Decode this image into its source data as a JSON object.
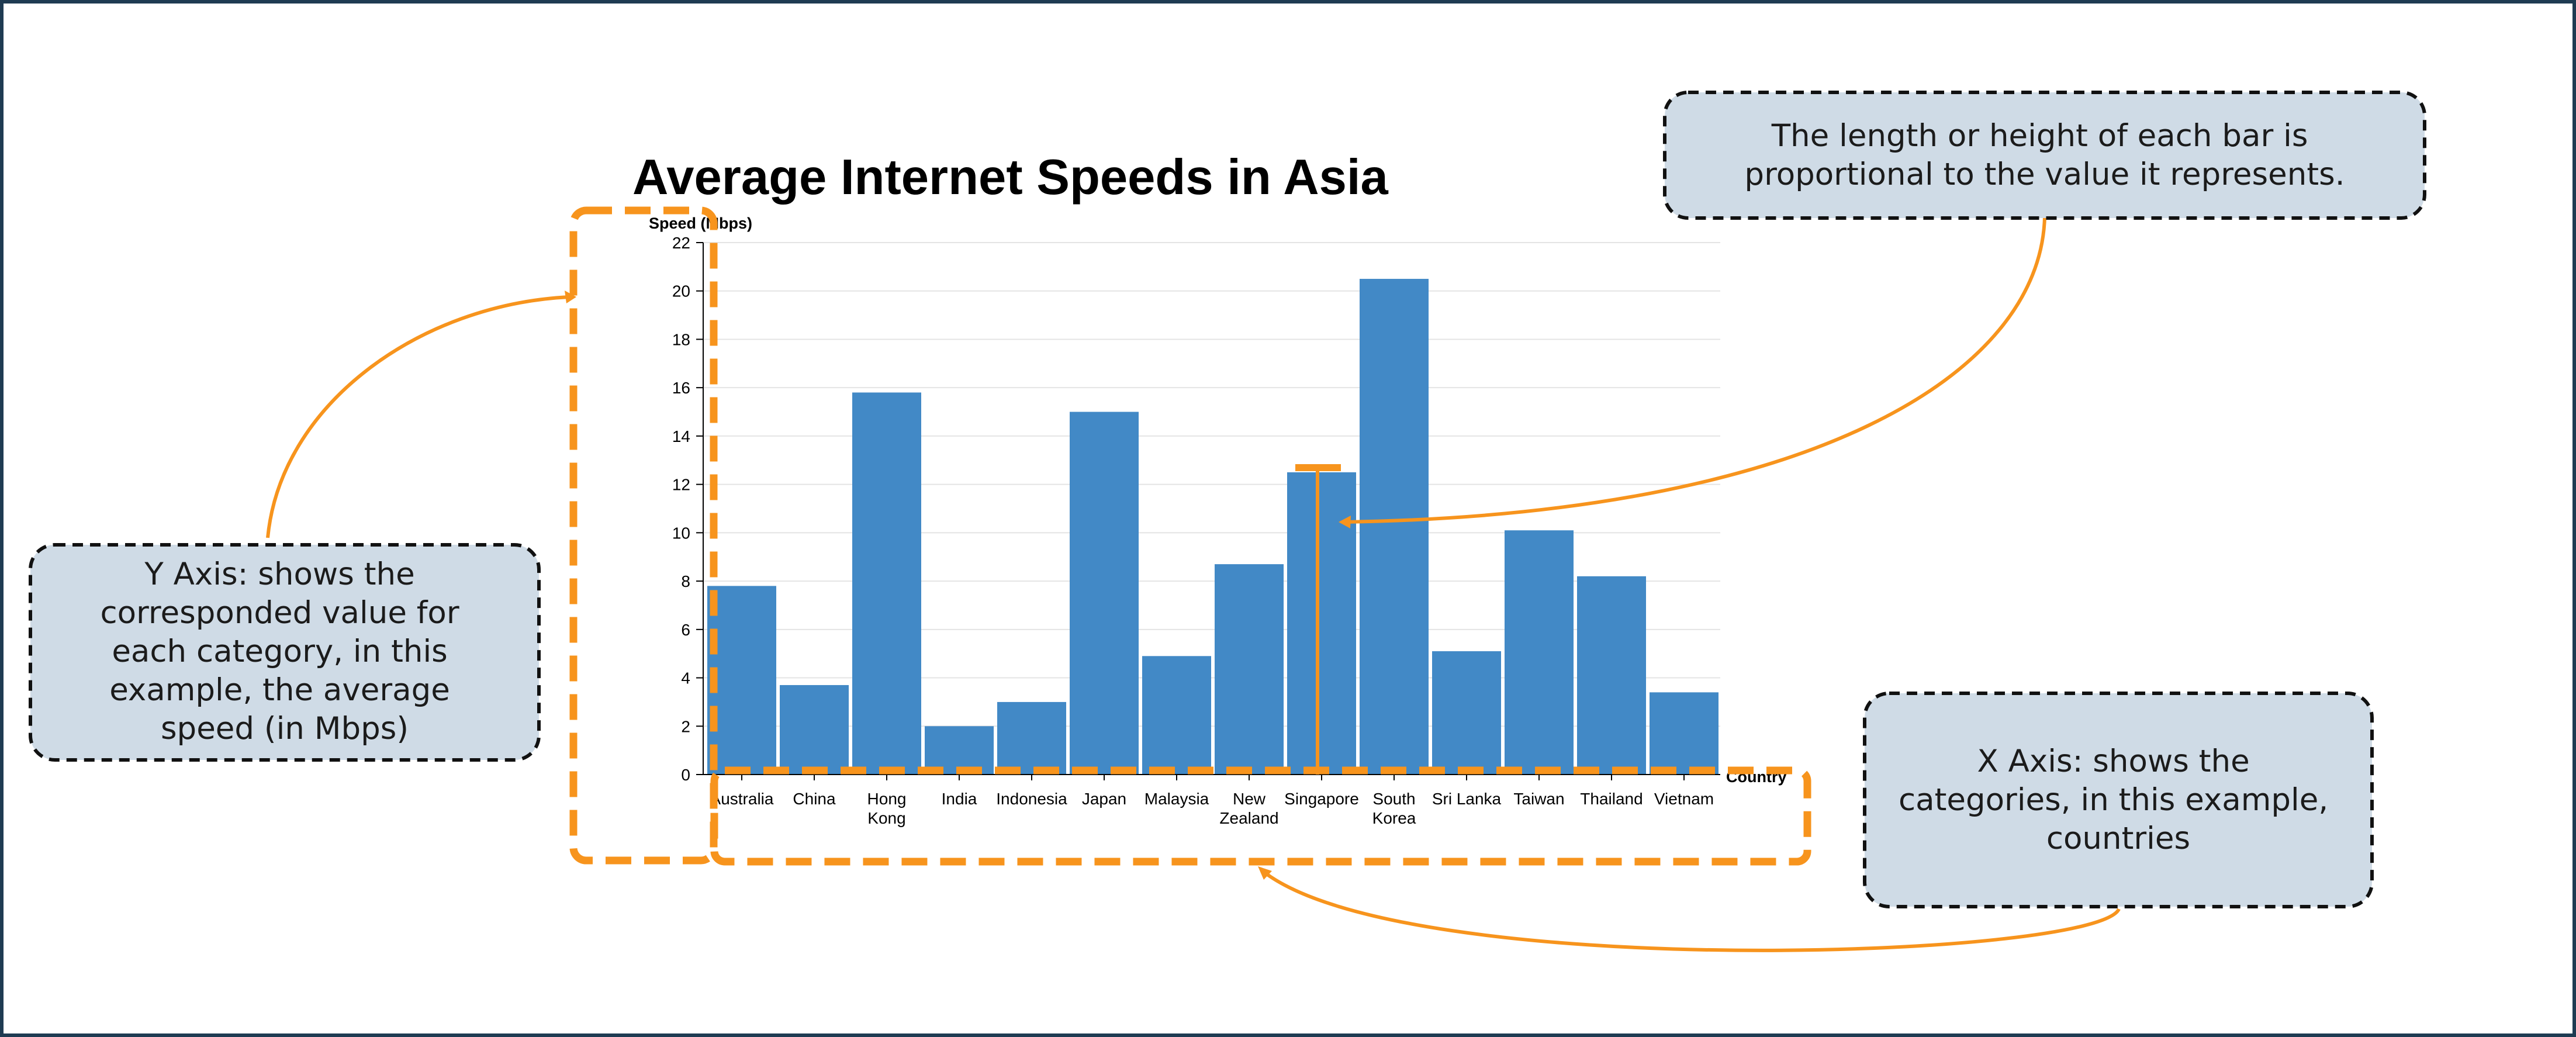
{
  "colors": {
    "frame": "#1f3b52",
    "bar": "#4289c6",
    "highlight": "#f7941d",
    "callout_fill": "#cfdbe6",
    "grid": "#e4e4e4"
  },
  "chart_data": {
    "type": "bar",
    "title": "Average Internet Speeds in Asia",
    "ylabel": "Speed (Mbps)",
    "xlabel": "Country",
    "ylim": [
      0,
      22
    ],
    "yticks": [
      "0",
      "2",
      "4",
      "6",
      "8",
      "10",
      "12",
      "14",
      "16",
      "18",
      "20",
      "22"
    ],
    "grid": "horizontal",
    "categories": [
      [
        "Australia"
      ],
      [
        "China"
      ],
      [
        "Hong",
        "Kong"
      ],
      [
        "India"
      ],
      [
        "Indonesia"
      ],
      [
        "Japan"
      ],
      [
        "Malaysia"
      ],
      [
        "New",
        "Zealand"
      ],
      [
        "Singapore"
      ],
      [
        "South",
        "Korea"
      ],
      [
        "Sri Lanka"
      ],
      [
        "Taiwan"
      ],
      [
        "Thailand"
      ],
      [
        "Vietnam"
      ]
    ],
    "values": [
      7.8,
      3.7,
      15.8,
      2.0,
      3.0,
      15.0,
      4.9,
      8.7,
      12.5,
      20.5,
      5.1,
      10.1,
      8.2,
      3.4
    ]
  },
  "callouts": {
    "y_axis": [
      "Y Axis: shows the",
      "corresponded value for",
      "each category, in this",
      "example, the average",
      "speed (in Mbps)"
    ],
    "bar_length": [
      "The length or height of each bar is",
      "proportional to the value it represents."
    ],
    "x_axis": [
      "X Axis: shows the",
      "categories, in this example,",
      "countries"
    ]
  }
}
